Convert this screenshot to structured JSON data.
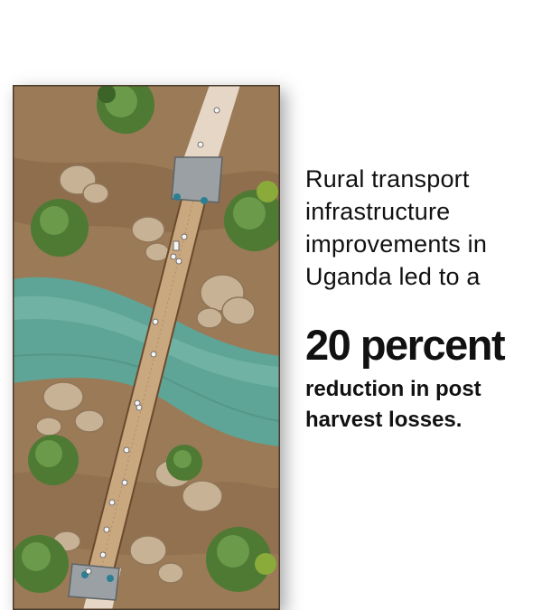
{
  "caption": {
    "lead": "Rural transport infrastructure improvements in Uganda led to a",
    "stat": "20 percent",
    "tail": "reduction in post harvest losses."
  },
  "illustration": {
    "subject": "bridge-over-river",
    "colors": {
      "ground": "#9b7a57",
      "ground_dark": "#7a5a3d",
      "river": "#5fa597",
      "river_light": "#7ebfae",
      "bridge_deck": "#c9a880",
      "road": "#e6d6c6",
      "tree": "#4e7a34",
      "rock": "#c8b296",
      "post": "#2c7f92"
    }
  }
}
